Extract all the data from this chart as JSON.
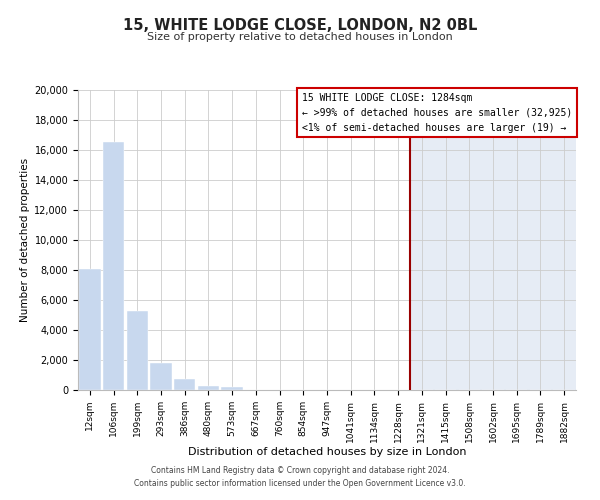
{
  "title": "15, WHITE LODGE CLOSE, LONDON, N2 0BL",
  "subtitle": "Size of property relative to detached houses in London",
  "xlabel": "Distribution of detached houses by size in London",
  "ylabel": "Number of detached properties",
  "bar_labels": [
    "12sqm",
    "106sqm",
    "199sqm",
    "293sqm",
    "386sqm",
    "480sqm",
    "573sqm",
    "667sqm",
    "760sqm",
    "854sqm",
    "947sqm",
    "1041sqm",
    "1134sqm",
    "1228sqm",
    "1321sqm",
    "1415sqm",
    "1508sqm",
    "1602sqm",
    "1695sqm",
    "1789sqm",
    "1882sqm"
  ],
  "bar_values": [
    8100,
    16500,
    5300,
    1800,
    750,
    280,
    200,
    0,
    0,
    0,
    0,
    0,
    0,
    0,
    0,
    0,
    0,
    0,
    0,
    0,
    0
  ],
  "bar_color_main": "#c8d8ee",
  "bar_color_right": "#dce6f1",
  "vline_index": 13.5,
  "vline_color": "#990000",
  "annotation_title": "15 WHITE LODGE CLOSE: 1284sqm",
  "annotation_line1": "← >99% of detached houses are smaller (32,925)",
  "annotation_line2": "<1% of semi-detached houses are larger (19) →",
  "ylim": [
    0,
    20000
  ],
  "yticks": [
    0,
    2000,
    4000,
    6000,
    8000,
    10000,
    12000,
    14000,
    16000,
    18000,
    20000
  ],
  "footer1": "Contains HM Land Registry data © Crown copyright and database right 2024.",
  "footer2": "Contains public sector information licensed under the Open Government Licence v3.0.",
  "background_color": "#ffffff",
  "grid_color": "#cccccc",
  "plot_bg_color_left": "#ffffff",
  "plot_bg_color_right": "#e6ecf5"
}
